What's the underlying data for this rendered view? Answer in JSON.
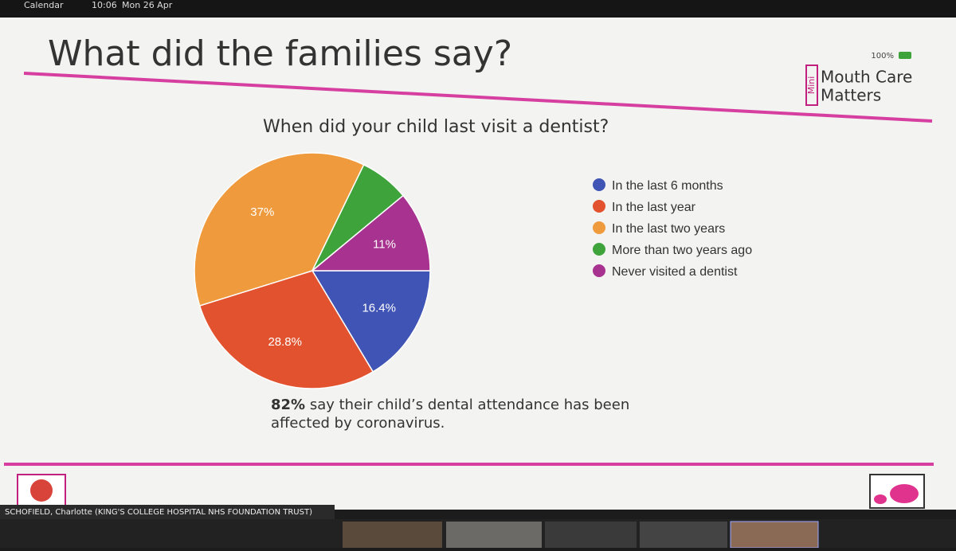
{
  "status_bar": {
    "app": "Calendar",
    "time": "10:06",
    "date": "Mon 26 Apr",
    "battery": "100%"
  },
  "slide": {
    "title": "What did the families say?",
    "logo": {
      "mark": "Mini",
      "line1": "Mouth Care",
      "line2": "Matters"
    },
    "note": {
      "bold": "82%",
      "line1": " say their child’s dental attendance has been",
      "line2": "affected by coronavirus."
    }
  },
  "chart_data": {
    "type": "pie",
    "title": "When did your child last visit a dentist?",
    "categories": [
      "In the last 6 months",
      "In the last year",
      "In the last two years",
      "More than two years ago",
      "Never visited a dentist"
    ],
    "values": [
      16.4,
      28.8,
      37,
      6.8,
      11
    ],
    "value_labels": [
      "16.4%",
      "28.8%",
      "37%",
      null,
      "11%"
    ],
    "colors": [
      "#3f54b4",
      "#e2522f",
      "#ef9a3d",
      "#3ea33a",
      "#a8328f"
    ],
    "legend": "right"
  },
  "footer": {
    "speaker": "SCHOFIELD, Charlotte (KING'S COLLEGE HOSPITAL NHS FOUNDATION TRUST)"
  }
}
